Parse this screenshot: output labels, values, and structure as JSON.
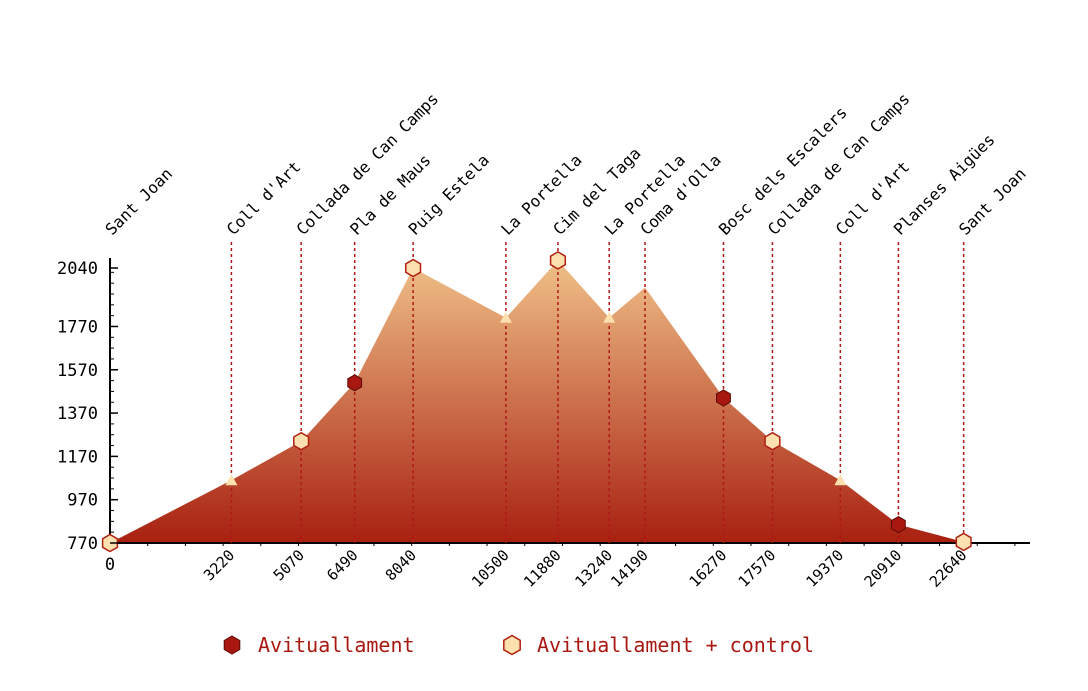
{
  "chart_data": {
    "type": "area",
    "title": "",
    "xlabel": "",
    "ylabel": "",
    "x_zero_label": "0",
    "xlim": [
      0,
      24400
    ],
    "ylim": [
      770,
      2040
    ],
    "ytick_values": [
      770,
      970,
      1170,
      1370,
      1570,
      1770,
      2040
    ],
    "ytick_labels": [
      "770",
      "970",
      "1170",
      "1370",
      "1570",
      "1770",
      "2040"
    ],
    "colors": {
      "area_top": "#f0c088",
      "area_bottom": "#a82010",
      "line": "#b01818",
      "filled_marker": "#a81810",
      "open_marker_fill": "#fde0b0",
      "open_marker_stroke": "#b02010",
      "legend_text": "#a81810"
    },
    "series": [
      {
        "x": [
          0,
          3220,
          5070,
          6490,
          8040,
          10500,
          11880,
          13240,
          14190,
          16270,
          17570,
          19370,
          20910,
          22640
        ],
        "y": [
          770,
          1060,
          1240,
          1510,
          2040,
          1810,
          2075,
          1810,
          1950,
          1440,
          1240,
          1060,
          855,
          775
        ]
      }
    ],
    "points": [
      {
        "x": 0,
        "y": 770,
        "name": "Sant Joan",
        "x_label": "",
        "marker": "open"
      },
      {
        "x": 3220,
        "y": 1060,
        "name": "Coll d'Art",
        "x_label": "3220",
        "marker": "triangle"
      },
      {
        "x": 5070,
        "y": 1240,
        "name": "Collada de Can Camps",
        "x_label": "5070",
        "marker": "open"
      },
      {
        "x": 6490,
        "y": 1510,
        "name": "Pla de Maus",
        "x_label": "6490",
        "marker": "filled"
      },
      {
        "x": 8040,
        "y": 2040,
        "name": "Puig Estela",
        "x_label": "8040",
        "marker": "open"
      },
      {
        "x": 10500,
        "y": 1810,
        "name": "La Portella",
        "x_label": "10500",
        "marker": "triangle"
      },
      {
        "x": 11880,
        "y": 2075,
        "name": "Cim del Taga",
        "x_label": "11880",
        "marker": "open"
      },
      {
        "x": 13240,
        "y": 1810,
        "name": "La Portella",
        "x_label": "13240",
        "marker": "triangle"
      },
      {
        "x": 14190,
        "y": 1950,
        "name": "Coma d'Olla",
        "x_label": "14190",
        "marker": "none"
      },
      {
        "x": 16270,
        "y": 1440,
        "name": "Bosc dels Escalers",
        "x_label": "16270",
        "marker": "filled"
      },
      {
        "x": 17570,
        "y": 1240,
        "name": "Collada de Can Camps",
        "x_label": "17570",
        "marker": "open"
      },
      {
        "x": 19370,
        "y": 1060,
        "name": "Coll d'Art",
        "x_label": "19370",
        "marker": "triangle"
      },
      {
        "x": 20910,
        "y": 855,
        "name": "Planses Aigües",
        "x_label": "20910",
        "marker": "filled"
      },
      {
        "x": 22640,
        "y": 775,
        "name": "Sant Joan",
        "x_label": "22640",
        "marker": "open"
      }
    ],
    "legend": {
      "placement": "bottom",
      "items": [
        {
          "label": "Avituallament",
          "marker": "filled"
        },
        {
          "label": "Avituallament + control",
          "marker": "open"
        }
      ]
    }
  }
}
